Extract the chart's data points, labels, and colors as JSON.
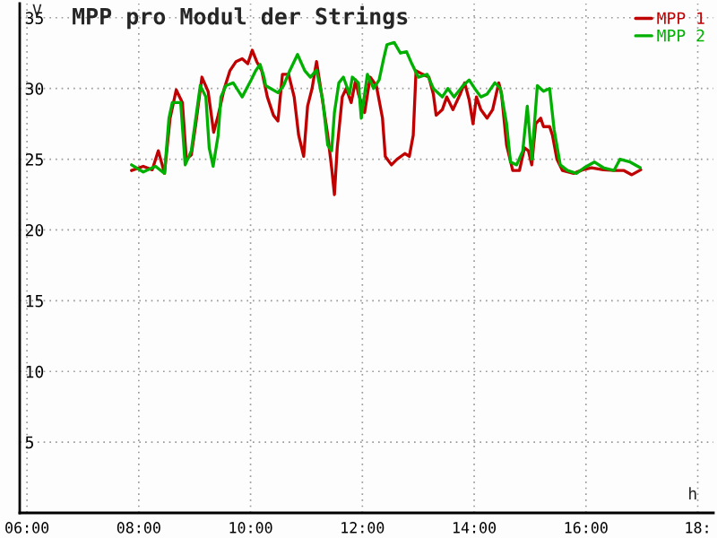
{
  "chart_data": {
    "type": "line",
    "title": "MPP pro Modul der Strings",
    "xlabel": "h",
    "ylabel": "V",
    "xlim": [
      5.87,
      18.28
    ],
    "ylim": [
      0,
      36
    ],
    "xticks": [
      {
        "value": 6,
        "label": "06:00"
      },
      {
        "value": 8,
        "label": "08:00"
      },
      {
        "value": 10,
        "label": "10:00"
      },
      {
        "value": 12,
        "label": "12:00"
      },
      {
        "value": 14,
        "label": "14:00"
      },
      {
        "value": 16,
        "label": "16:00"
      },
      {
        "value": 18,
        "label": "18:"
      }
    ],
    "yticks": [
      5,
      10,
      15,
      20,
      25,
      30,
      35
    ],
    "grid": true,
    "legend": "top right",
    "marker": "none",
    "line_style": "solid",
    "series": [
      {
        "name": "MPP 1",
        "color": "#c00000",
        "x": [
          7.87,
          8.08,
          8.24,
          8.35,
          8.46,
          8.56,
          8.67,
          8.78,
          8.85,
          8.94,
          9.02,
          9.13,
          9.24,
          9.34,
          9.42,
          9.53,
          9.63,
          9.74,
          9.85,
          9.95,
          10.03,
          10.11,
          10.2,
          10.3,
          10.41,
          10.49,
          10.57,
          10.68,
          10.78,
          10.86,
          10.95,
          11.02,
          11.1,
          11.18,
          11.27,
          11.38,
          11.45,
          11.5,
          11.55,
          11.64,
          11.71,
          11.8,
          11.88,
          11.93,
          12.04,
          12.14,
          12.25,
          12.36,
          12.41,
          12.52,
          12.62,
          12.76,
          12.84,
          12.91,
          12.96,
          13.08,
          13.19,
          13.27,
          13.32,
          13.43,
          13.51,
          13.62,
          13.75,
          13.83,
          13.91,
          13.98,
          14.04,
          14.12,
          14.23,
          14.33,
          14.44,
          14.49,
          14.58,
          14.69,
          14.81,
          14.9,
          14.97,
          15.03,
          15.1,
          15.19,
          15.24,
          15.35,
          15.4,
          15.48,
          15.58,
          15.78,
          15.94,
          16.1,
          16.31,
          16.52,
          16.68,
          16.82,
          16.98
        ],
        "values": [
          24.2,
          24.5,
          24.25,
          25.6,
          24,
          27.9,
          29.9,
          29,
          25,
          25.3,
          27.5,
          30.8,
          29.8,
          26.9,
          28.1,
          30,
          31.25,
          31.9,
          32.1,
          31.75,
          32.7,
          31.9,
          31.25,
          29.4,
          28.1,
          27.7,
          31,
          31,
          29.4,
          26.7,
          25.2,
          28.75,
          30,
          31.9,
          29.6,
          26.7,
          24.4,
          22.5,
          25.8,
          29.4,
          30,
          29,
          30.6,
          29.6,
          28.3,
          30.8,
          30.2,
          27.9,
          25.2,
          24.6,
          25,
          25.4,
          25.2,
          26.7,
          31.25,
          31,
          30.8,
          29.6,
          28.1,
          28.5,
          29.4,
          28.5,
          29.6,
          30.4,
          29.2,
          27.5,
          29.4,
          28.5,
          27.9,
          28.5,
          30.4,
          29.6,
          26,
          24.2,
          24.2,
          25.8,
          25.6,
          24.6,
          27.5,
          27.9,
          27.3,
          27.3,
          26.7,
          25,
          24.2,
          24,
          24.25,
          24.4,
          24.25,
          24.2,
          24.2,
          23.9,
          24.25
        ]
      },
      {
        "name": "MPP 2",
        "color": "#00b000",
        "x": [
          7.87,
          8.08,
          8.3,
          8.46,
          8.54,
          8.6,
          8.75,
          8.83,
          8.94,
          9.02,
          9.1,
          9.2,
          9.26,
          9.33,
          9.42,
          9.47,
          9.56,
          9.69,
          9.85,
          10.01,
          10.09,
          10.17,
          10.24,
          10.27,
          10.49,
          10.59,
          10.7,
          10.84,
          10.97,
          11.07,
          11.18,
          11.29,
          11.38,
          11.45,
          11.5,
          11.58,
          11.66,
          11.77,
          11.82,
          11.93,
          11.98,
          12.09,
          12.2,
          12.3,
          12.38,
          12.44,
          12.57,
          12.68,
          12.79,
          12.89,
          13,
          13.16,
          13.27,
          13.43,
          13.53,
          13.64,
          13.8,
          13.91,
          14.01,
          14.12,
          14.23,
          14.37,
          14.47,
          14.58,
          14.65,
          14.76,
          14.87,
          14.95,
          15.03,
          15.13,
          15.24,
          15.35,
          15.43,
          15.54,
          15.67,
          15.83,
          15.97,
          16.15,
          16.31,
          16.5,
          16.61,
          16.79,
          16.97
        ],
        "values": [
          24.6,
          24.1,
          24.5,
          24,
          27.9,
          29,
          29,
          24.6,
          25.6,
          27.9,
          30.2,
          29.4,
          25.8,
          24.5,
          26.7,
          29.4,
          30.2,
          30.4,
          29.4,
          30.6,
          31.25,
          31.7,
          30.8,
          30.2,
          29.7,
          30.2,
          31.25,
          32.4,
          31.25,
          30.8,
          31.3,
          29.2,
          26,
          25.6,
          28.3,
          30.4,
          30.8,
          29.6,
          30.8,
          30.4,
          27.9,
          31,
          30,
          30.6,
          32.1,
          33.1,
          33.25,
          32.5,
          32.6,
          31.7,
          30.8,
          31,
          30,
          29.4,
          30,
          29.4,
          30.2,
          30.6,
          30,
          29.4,
          29.6,
          30.4,
          30,
          27.5,
          24.8,
          24.6,
          25.6,
          28.75,
          25,
          30.2,
          29.8,
          30,
          27.1,
          24.6,
          24.2,
          24,
          24.4,
          24.8,
          24.4,
          24.2,
          25,
          24.8,
          24.4
        ]
      }
    ]
  }
}
